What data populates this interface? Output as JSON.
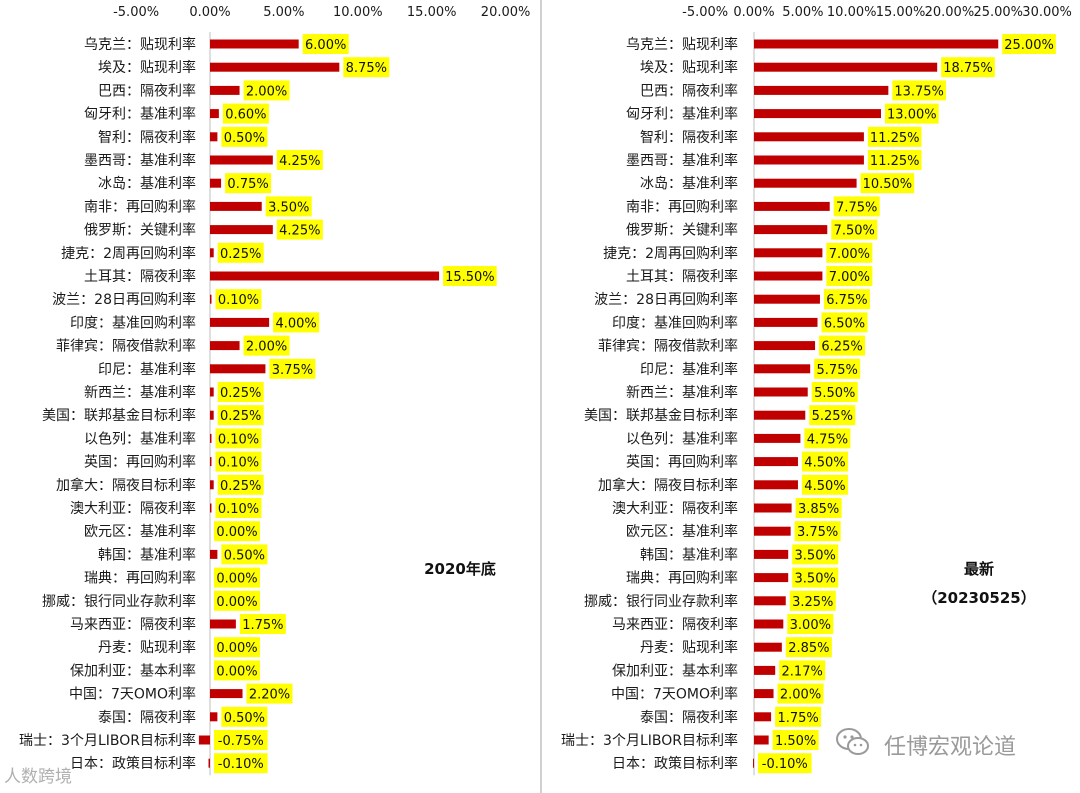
{
  "chart_data": [
    {
      "type": "bar",
      "orientation": "horizontal",
      "annotation": "2020年底",
      "categories": [
        "乌克兰：贴现利率",
        "埃及：贴现利率",
        "巴西：隔夜利率",
        "匈牙利：基准利率",
        "智利：隔夜利率",
        "墨西哥：基准利率",
        "冰岛：基准利率",
        "南非：再回购利率",
        "俄罗斯：关键利率",
        "捷克：2周再回购利率",
        "土耳其：隔夜利率",
        "波兰：28日再回购利率",
        "印度：基准回购利率",
        "菲律宾：隔夜借款利率",
        "印尼：基准利率",
        "新西兰：基准利率",
        "美国：联邦基金目标利率",
        "以色列：基准利率",
        "英国：再回购利率",
        "加拿大：隔夜目标利率",
        "澳大利亚：隔夜利率",
        "欧元区：基准利率",
        "韩国：基准利率",
        "瑞典：再回购利率",
        "挪威：银行同业存款利率",
        "马来西亚：隔夜利率",
        "丹麦：贴现利率",
        "保加利亚：基本利率",
        "中国：7天OMO利率",
        "泰国：隔夜利率",
        "瑞士：3个月LIBOR目标利率",
        "日本：政策目标利率"
      ],
      "values": [
        6.0,
        8.75,
        2.0,
        0.6,
        0.5,
        4.25,
        0.75,
        3.5,
        4.25,
        0.25,
        15.5,
        0.1,
        4.0,
        2.0,
        3.75,
        0.25,
        0.25,
        0.1,
        0.1,
        0.25,
        0.1,
        0.0,
        0.5,
        0.0,
        0.0,
        1.75,
        0.0,
        0.0,
        2.2,
        0.5,
        -0.75,
        -0.1
      ],
      "value_labels": [
        "6.00%",
        "8.75%",
        "2.00%",
        "0.60%",
        "0.50%",
        "4.25%",
        "0.75%",
        "3.50%",
        "4.25%",
        "0.25%",
        "15.50%",
        "0.10%",
        "4.00%",
        "2.00%",
        "3.75%",
        "0.25%",
        "0.25%",
        "0.10%",
        "0.10%",
        "0.25%",
        "0.10%",
        "0.00%",
        "0.50%",
        "0.00%",
        "0.00%",
        "1.75%",
        "0.00%",
        "0.00%",
        "2.20%",
        "0.50%",
        "-0.75%",
        "-0.10%"
      ],
      "xlim": [
        -5,
        20
      ],
      "xticks": [
        -5,
        0,
        5,
        10,
        15,
        20
      ],
      "xtick_labels": [
        "-5.00%",
        "0.00%",
        "5.00%",
        "10.00%",
        "15.00%",
        "20.00%"
      ],
      "axis_position": "top",
      "grid": false,
      "bar_color": "#c00000",
      "label_bg_color": "#ffff00"
    },
    {
      "type": "bar",
      "orientation": "horizontal",
      "annotation": "最新",
      "annotation_sub": "（20230525）",
      "categories": [
        "乌克兰：贴现利率",
        "埃及：贴现利率",
        "巴西：隔夜利率",
        "匈牙利：基准利率",
        "智利：隔夜利率",
        "墨西哥：基准利率",
        "冰岛：基准利率",
        "南非：再回购利率",
        "俄罗斯：关键利率",
        "捷克：2周再回购利率",
        "土耳其：隔夜利率",
        "波兰：28日再回购利率",
        "印度：基准回购利率",
        "菲律宾：隔夜借款利率",
        "印尼：基准利率",
        "新西兰：基准利率",
        "美国：联邦基金目标利率",
        "以色列：基准利率",
        "英国：再回购利率",
        "加拿大：隔夜目标利率",
        "澳大利亚：隔夜利率",
        "欧元区：基准利率",
        "韩国：基准利率",
        "瑞典：再回购利率",
        "挪威：银行同业存款利率",
        "马来西亚：隔夜利率",
        "丹麦：贴现利率",
        "保加利亚：基本利率",
        "中国：7天OMO利率",
        "泰国：隔夜利率",
        "瑞士：3个月LIBOR目标利率",
        "日本：政策目标利率"
      ],
      "values": [
        25.0,
        18.75,
        13.75,
        13.0,
        11.25,
        11.25,
        10.5,
        7.75,
        7.5,
        7.0,
        7.0,
        6.75,
        6.5,
        6.25,
        5.75,
        5.5,
        5.25,
        4.75,
        4.5,
        4.5,
        3.85,
        3.75,
        3.5,
        3.5,
        3.25,
        3.0,
        2.85,
        2.17,
        2.0,
        1.75,
        1.5,
        -0.1
      ],
      "value_labels": [
        "25.00%",
        "18.75%",
        "13.75%",
        "13.00%",
        "11.25%",
        "11.25%",
        "10.50%",
        "7.75%",
        "7.50%",
        "7.00%",
        "7.00%",
        "6.75%",
        "6.50%",
        "6.25%",
        "5.75%",
        "5.50%",
        "5.25%",
        "4.75%",
        "4.50%",
        "4.50%",
        "3.85%",
        "3.75%",
        "3.50%",
        "3.50%",
        "3.25%",
        "3.00%",
        "2.85%",
        "2.17%",
        "2.00%",
        "1.75%",
        "1.50%",
        "-0.10%"
      ],
      "xlim": [
        -5,
        30
      ],
      "xticks": [
        -5,
        0,
        5,
        10,
        15,
        20,
        25,
        30
      ],
      "xtick_labels": [
        "-5.00%",
        "0.00%",
        "5.00%",
        "10.00%",
        "15.00%",
        "20.00%",
        "25.00%",
        "30.00%"
      ],
      "axis_position": "top",
      "grid": false,
      "bar_color": "#c00000",
      "label_bg_color": "#ffff00"
    }
  ],
  "watermark": {
    "brand": "任博宏观论道",
    "left_text": "人数跨境",
    "icon": "wechat-icon"
  }
}
